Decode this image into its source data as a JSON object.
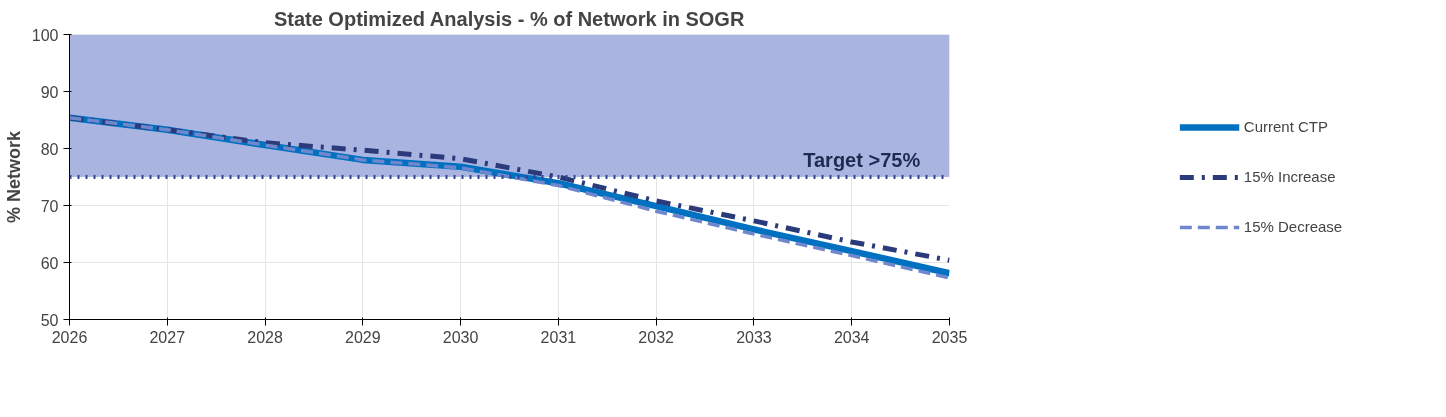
{
  "chart_data": {
    "type": "line",
    "title": "State Optimized Analysis - % of Network in SOGR",
    "ylabel": "% Network",
    "x": [
      2026,
      2027,
      2028,
      2029,
      2030,
      2031,
      2032,
      2033,
      2034,
      2035
    ],
    "series": [
      {
        "name": "Current CTP",
        "color": "#0070c0",
        "line_style": "solid",
        "values": [
          85.4,
          83.3,
          80.6,
          78.0,
          76.8,
          73.9,
          69.9,
          65.8,
          62.0,
          58.1
        ]
      },
      {
        "name": "15% Increase",
        "color": "#2b3a7a",
        "line_style": "dashdot",
        "values": [
          85.4,
          83.3,
          81.0,
          79.7,
          78.2,
          75.0,
          70.8,
          67.3,
          63.6,
          60.4
        ]
      },
      {
        "name": "15% Decrease",
        "color": "#6f87cc",
        "line_style": "dashed",
        "values": [
          85.4,
          83.3,
          80.6,
          78.0,
          76.6,
          73.5,
          69.0,
          65.0,
          61.2,
          57.3
        ]
      }
    ],
    "xlim": [
      2026,
      2035
    ],
    "xticks": [
      2026,
      2027,
      2028,
      2029,
      2030,
      2031,
      2032,
      2033,
      2034,
      2035
    ],
    "ylim": [
      50,
      100
    ],
    "yticks": [
      50,
      60,
      70,
      80,
      90,
      100
    ],
    "ref_lines": [
      {
        "axis": "y",
        "value": 75,
        "color": "#2f4496",
        "line_style": "dotted"
      }
    ],
    "bands": [
      {
        "axis": "y",
        "from": 75,
        "to": 100,
        "label": "Target >75%",
        "color": "#a9b5e0"
      }
    ],
    "grid": true,
    "legend": "right"
  }
}
